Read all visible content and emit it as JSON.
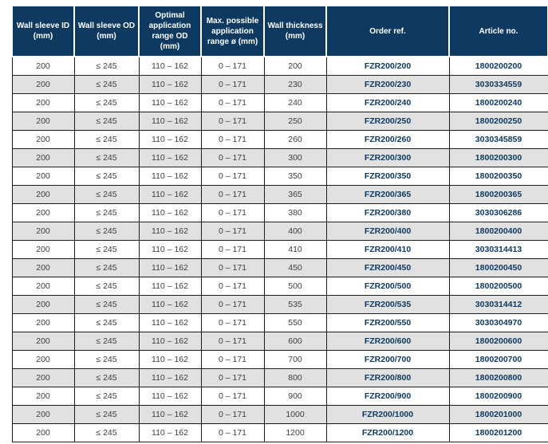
{
  "table": {
    "columns": [
      {
        "label": "Wall sleeve ID\n(mm)"
      },
      {
        "label": "Wall sleeve OD\n(mm)"
      },
      {
        "label": "Optimal\napplication\nrange OD\n(mm)"
      },
      {
        "label": "Max. possible\napplication\nrange ø (mm)"
      },
      {
        "label": "Wall thickness\n(mm)"
      },
      {
        "label": "Order ref."
      },
      {
        "label": "Article no."
      }
    ],
    "rows": [
      [
        "200",
        "≤ 245",
        "110 – 162",
        "0 – 171",
        "200",
        "FZR200/200",
        "1800200200"
      ],
      [
        "200",
        "≤ 245",
        "110 – 162",
        "0 – 171",
        "230",
        "FZR200/230",
        "3030334559"
      ],
      [
        "200",
        "≤ 245",
        "110 – 162",
        "0 – 171",
        "240",
        "FZR200/240",
        "1800200240"
      ],
      [
        "200",
        "≤ 245",
        "110 – 162",
        "0 – 171",
        "250",
        "FZR200/250",
        "1800200250"
      ],
      [
        "200",
        "≤ 245",
        "110 – 162",
        "0 – 171",
        "260",
        "FZR200/260",
        "3030345859"
      ],
      [
        "200",
        "≤ 245",
        "110 – 162",
        "0 – 171",
        "300",
        "FZR200/300",
        "1800200300"
      ],
      [
        "200",
        "≤ 245",
        "110 – 162",
        "0 – 171",
        "350",
        "FZR200/350",
        "1800200350"
      ],
      [
        "200",
        "≤ 245",
        "110 – 162",
        "0 – 171",
        "365",
        "FZR200/365",
        "1800200365"
      ],
      [
        "200",
        "≤ 245",
        "110 – 162",
        "0 – 171",
        "380",
        "FZR200/380",
        "3030306286"
      ],
      [
        "200",
        "≤ 245",
        "110 – 162",
        "0 – 171",
        "400",
        "FZR200/400",
        "1800200400"
      ],
      [
        "200",
        "≤ 245",
        "110 – 162",
        "0 – 171",
        "410",
        "FZR200/410",
        "3030314413"
      ],
      [
        "200",
        "≤ 245",
        "110 – 162",
        "0 – 171",
        "450",
        "FZR200/450",
        "1800200450"
      ],
      [
        "200",
        "≤ 245",
        "110 – 162",
        "0 – 171",
        "500",
        "FZR200/500",
        "1800200500"
      ],
      [
        "200",
        "≤ 245",
        "110 – 162",
        "0 – 171",
        "535",
        "FZR200/535",
        "3030314412"
      ],
      [
        "200",
        "≤ 245",
        "110 – 162",
        "0 – 171",
        "550",
        "FZR200/550",
        "3030304970"
      ],
      [
        "200",
        "≤ 245",
        "110 – 162",
        "0 – 171",
        "600",
        "FZR200/600",
        "1800200600"
      ],
      [
        "200",
        "≤ 245",
        "110 – 162",
        "0 – 171",
        "700",
        "FZR200/700",
        "1800200700"
      ],
      [
        "200",
        "≤ 245",
        "110 – 162",
        "0 – 171",
        "800",
        "FZR200/800",
        "1800200800"
      ],
      [
        "200",
        "≤ 245",
        "110 – 162",
        "0 – 171",
        "900",
        "FZR200/900",
        "1800200900"
      ],
      [
        "200",
        "≤ 245",
        "110 – 162",
        "0 – 171",
        "1000",
        "FZR200/1000",
        "1800201000"
      ],
      [
        "200",
        "≤ 245",
        "110 – 162",
        "0 – 171",
        "1200",
        "FZR200/1200",
        "1800201200"
      ]
    ],
    "colors": {
      "header_bg": "#0e3a62",
      "header_text": "#ffffff",
      "row_bg": "#ffffff",
      "row_alt_bg": "#e1e1e1",
      "border": "#1c1c1c",
      "body_text": "#3d3d3d",
      "accent_text": "#0e3a62"
    }
  }
}
